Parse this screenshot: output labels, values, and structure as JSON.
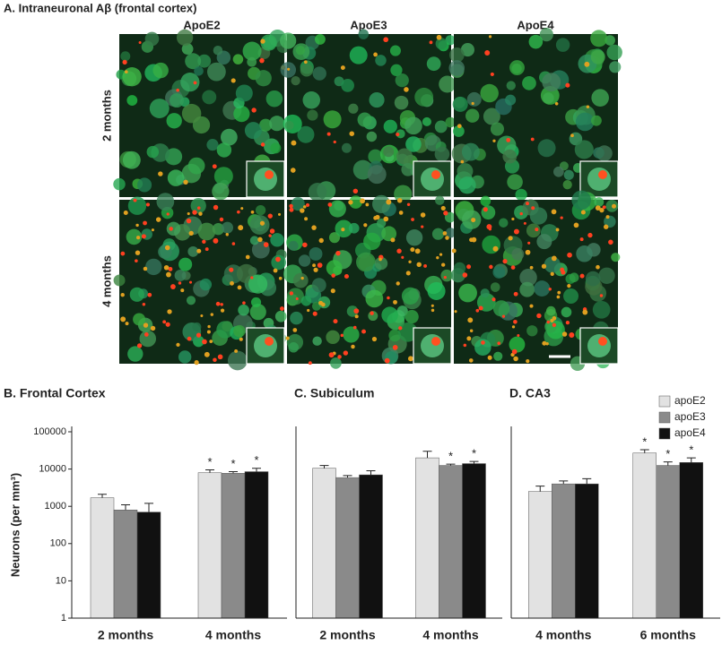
{
  "panel_a": {
    "title": "A. Intraneuronal Aβ (frontal cortex)",
    "columns": [
      "ApoE2",
      "ApoE3",
      "ApoE4"
    ],
    "rows": [
      "2 months",
      "4 months"
    ]
  },
  "chart_data": [
    {
      "type": "bar",
      "title": "B. Frontal Cortex",
      "y_label": "Neurons (per mm³)",
      "log_scale": true,
      "categories": [
        "2 months",
        "4 months"
      ],
      "ylim": [
        1,
        100000
      ],
      "yticks": [
        1,
        10,
        100,
        1000,
        10000,
        100000
      ],
      "significance_marker": "*",
      "series": [
        {
          "color": "#e2e2e2",
          "values": [
            1700,
            8000
          ],
          "errors": [
            400,
            1500
          ],
          "significant": [
            false,
            true
          ]
        },
        {
          "color": "#8a8a8a",
          "values": [
            800,
            7700
          ],
          "errors": [
            300,
            800
          ],
          "significant": [
            false,
            true
          ]
        },
        {
          "color": "#111111",
          "values": [
            700,
            8500
          ],
          "errors": [
            500,
            2000
          ],
          "significant": [
            false,
            true
          ]
        }
      ]
    },
    {
      "type": "bar",
      "title": "C. Subiculum",
      "log_scale": true,
      "categories": [
        "2 months",
        "4 months"
      ],
      "ylim": [
        1,
        100000
      ],
      "significance_marker": "*",
      "series": [
        {
          "color": "#e2e2e2",
          "values": [
            10500,
            20000
          ],
          "errors": [
            2000,
            10000
          ],
          "significant": [
            false,
            false
          ]
        },
        {
          "color": "#8a8a8a",
          "values": [
            5900,
            12500
          ],
          "errors": [
            800,
            1000
          ],
          "significant": [
            false,
            true
          ]
        },
        {
          "color": "#111111",
          "values": [
            7000,
            14000
          ],
          "errors": [
            2000,
            2000
          ],
          "significant": [
            false,
            true
          ]
        }
      ]
    },
    {
      "type": "bar",
      "title": "D. CA3",
      "log_scale": true,
      "legend": "top-right",
      "categories": [
        "4 months",
        "6 months"
      ],
      "ylim": [
        1,
        100000
      ],
      "significance_marker": "*",
      "series": [
        {
          "name": "apoE2",
          "color": "#e2e2e2",
          "values": [
            2500,
            27000
          ],
          "errors": [
            1000,
            6000
          ],
          "significant": [
            false,
            true
          ]
        },
        {
          "name": "apoE3",
          "color": "#8a8a8a",
          "values": [
            4000,
            12500
          ],
          "errors": [
            800,
            3000
          ],
          "significant": [
            false,
            true
          ]
        },
        {
          "name": "apoE4",
          "color": "#111111",
          "values": [
            4000,
            15000
          ],
          "errors": [
            1500,
            5000
          ],
          "significant": [
            false,
            true
          ]
        }
      ]
    }
  ]
}
